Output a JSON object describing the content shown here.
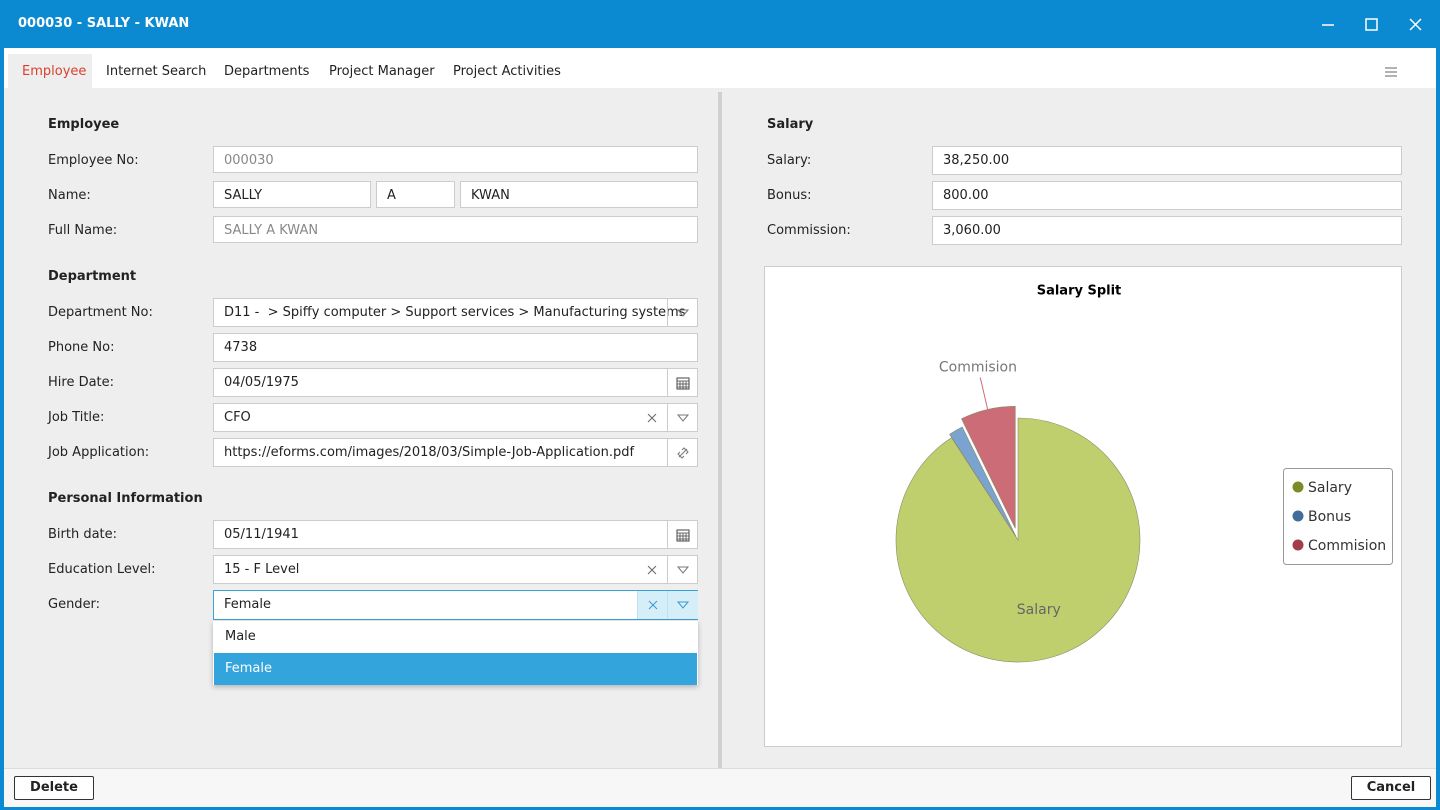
{
  "title_bar": {
    "title": "000030 - SALLY - KWAN"
  },
  "tabs": [
    "Employee",
    "Internet Search",
    "Departments",
    "Project Manager",
    "Project Activities"
  ],
  "left": {
    "sections": [
      {
        "heading": "Employee",
        "fields": [
          {
            "label": "Employee No:",
            "values": [
              "000030"
            ]
          },
          {
            "label": "Name:",
            "values": [
              "SALLY",
              "A",
              "KWAN"
            ]
          },
          {
            "label": "Full Name:",
            "values": [
              "SALLY A KWAN"
            ]
          }
        ]
      },
      {
        "heading": "Department",
        "fields": [
          {
            "label": "Department No:",
            "values": [
              "D11 -  > Spiffy computer > Support services > Manufacturing systems"
            ]
          },
          {
            "label": "Phone No:",
            "values": [
              "4738"
            ]
          },
          {
            "label": "Hire Date:",
            "values": [
              "04/05/1975"
            ]
          },
          {
            "label": "Job Title:",
            "values": [
              "CFO"
            ]
          },
          {
            "label": "Job Application:",
            "values": [
              "https://eforms.com/images/2018/03/Simple-Job-Application.pdf"
            ]
          }
        ]
      },
      {
        "heading": "Personal Information",
        "fields": [
          {
            "label": "Birth date:",
            "values": [
              "05/11/1941"
            ]
          },
          {
            "label": "Education Level:",
            "values": [
              "15 - F Level"
            ]
          },
          {
            "label": "Gender:",
            "values": [
              "Female"
            ]
          }
        ]
      }
    ]
  },
  "gender_options": [
    "Male",
    "Female"
  ],
  "right": {
    "heading": "Salary",
    "fields": [
      {
        "label": "Salary:",
        "value": "38,250.00"
      },
      {
        "label": "Bonus:",
        "value": "800.00"
      },
      {
        "label": "Commission:",
        "value": "3,060.00"
      }
    ]
  },
  "chart_data": {
    "type": "pie",
    "title": "Salary Split",
    "categories": [
      "Salary",
      "Bonus",
      "Commision"
    ],
    "values": [
      38250,
      800,
      3060
    ],
    "colors": [
      "#c0cf6e",
      "#7ba3cf",
      "#cc6c77"
    ],
    "legend": "right"
  },
  "buttons": {
    "delete": "Delete",
    "cancel": "Cancel"
  }
}
